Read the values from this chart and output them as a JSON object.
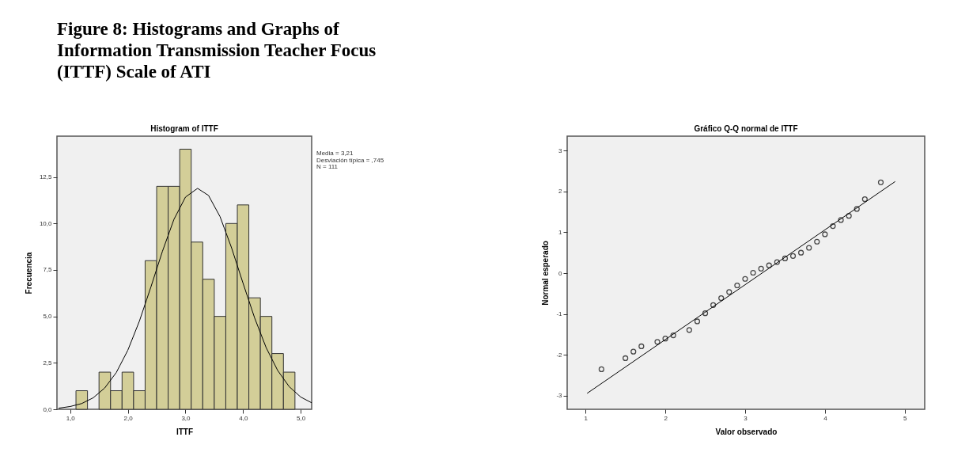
{
  "chart_data": [
    {
      "type": "histogram",
      "title": "Histogram of ITTF",
      "xlabel": "ITTF",
      "ylabel": "Frecuencia",
      "bins": [
        1.1,
        1.3,
        1.5,
        1.7,
        1.9,
        2.1,
        2.3,
        2.5,
        2.7,
        2.9,
        3.1,
        3.3,
        3.5,
        3.7,
        3.9,
        4.1,
        4.3,
        4.5,
        4.7,
        4.9
      ],
      "values": [
        1,
        0,
        2,
        1,
        2,
        1,
        8,
        12,
        12,
        14,
        9,
        7,
        5,
        10,
        11,
        6,
        5,
        3,
        2
      ],
      "color": "#d3ce98",
      "series": [
        {
          "type": "line",
          "color": "#000000",
          "x": [
            0.8,
            1.0,
            1.2,
            1.4,
            1.6,
            1.8,
            2.0,
            2.2,
            2.4,
            2.6,
            2.8,
            3.0,
            3.21,
            3.4,
            3.6,
            3.8,
            4.0,
            4.2,
            4.4,
            4.6,
            4.8,
            5.0,
            5.19
          ],
          "values": [
            0.06,
            0.15,
            0.31,
            0.62,
            1.15,
            1.98,
            3.18,
            4.74,
            6.58,
            8.5,
            10.22,
            11.42,
            11.89,
            11.51,
            10.37,
            8.69,
            6.78,
            4.92,
            3.32,
            2.09,
            1.22,
            0.66,
            0.35
          ]
        }
      ],
      "xlim": [
        0.77,
        5.19
      ],
      "ylim": [
        0,
        14.7
      ],
      "xticks": [
        {
          "value": 1,
          "label": "1,0"
        },
        {
          "value": 2,
          "label": "2,0"
        },
        {
          "value": 3,
          "label": "3,0"
        },
        {
          "value": 4,
          "label": "4,0"
        },
        {
          "value": 5,
          "label": "5,0"
        }
      ],
      "yticks": [
        {
          "value": 0,
          "label": "0,0"
        },
        {
          "value": 2.5,
          "label": "2,5"
        },
        {
          "value": 5,
          "label": "5,0"
        },
        {
          "value": 7.5,
          "label": "7,5"
        },
        {
          "value": 10,
          "label": "10,0"
        },
        {
          "value": 12.5,
          "label": "12,5"
        }
      ],
      "annotations": [
        "Figure 8: Histograms and Graphs of Information Transmission Teacher Focus (ITTF) Scale of ATI",
        "Media = 3,21",
        "Desviación típica = ,745",
        "N = 111"
      ],
      "grid": false
    },
    {
      "type": "scatter",
      "title": "Gráfico Q-Q normal de ITTF",
      "xlabel": "Valor observado",
      "ylabel": "Normal esperado",
      "series": [
        {
          "type": "scatter",
          "color": "#000000",
          "marker": "circle",
          "x": [
            1.2,
            1.5,
            1.6,
            1.7,
            1.9,
            2.0,
            2.1,
            2.3,
            2.4,
            2.5,
            2.6,
            2.7,
            2.8,
            2.9,
            3.0,
            3.1,
            3.2,
            3.3,
            3.4,
            3.5,
            3.6,
            3.7,
            3.8,
            3.9,
            4.0,
            4.1,
            4.2,
            4.3,
            4.4,
            4.5,
            4.7
          ],
          "values": [
            -2.35,
            -2.08,
            -1.92,
            -1.79,
            -1.68,
            -1.6,
            -1.52,
            -1.39,
            -1.18,
            -0.98,
            -0.78,
            -0.61,
            -0.46,
            -0.3,
            -0.14,
            0.01,
            0.11,
            0.19,
            0.27,
            0.36,
            0.42,
            0.5,
            0.62,
            0.77,
            0.95,
            1.15,
            1.3,
            1.4,
            1.57,
            1.81,
            2.22
          ]
        },
        {
          "type": "line",
          "color": "#000000",
          "x": [
            1.02,
            4.88
          ],
          "values": [
            -2.94,
            2.24
          ]
        }
      ],
      "xlim": [
        0.77,
        5.25
      ],
      "ylim": [
        -3.33,
        3.35
      ],
      "xticks": [
        1,
        2,
        3,
        4,
        5
      ],
      "yticks": [
        -3,
        -2,
        -1,
        0,
        1,
        2,
        3
      ],
      "grid": false
    }
  ]
}
